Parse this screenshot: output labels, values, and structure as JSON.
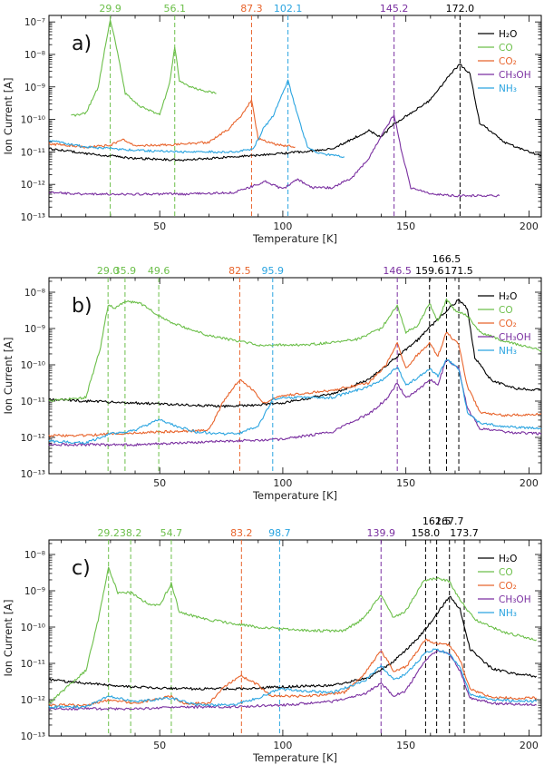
{
  "colors": {
    "H2O": "#000000",
    "CO": "#6cbf4a",
    "CO2": "#e8642c",
    "CH3OH": "#7a2fa0",
    "NH3": "#2aa4e0"
  },
  "chart_data": [
    {
      "type": "line",
      "panel_label": "a)",
      "xlabel": "Temperature [K]",
      "ylabel": "Ion Current [A]",
      "xlim": [
        5,
        205
      ],
      "ylim_log10": [
        -13,
        -6.8
      ],
      "x_ticks": [
        "50",
        "100",
        "150",
        "200"
      ],
      "y_ticks": [
        "10⁻¹³",
        "10⁻¹²",
        "10⁻¹¹",
        "10⁻¹⁰",
        "10⁻⁹",
        "10⁻⁸",
        "10⁻⁷"
      ],
      "legend": [
        "H₂O",
        "CO",
        "CO₂",
        "CH₃OH",
        "NH₃"
      ],
      "peak_markers": [
        {
          "T": 29.9,
          "label": "29.9",
          "species": "CO",
          "row": 0
        },
        {
          "T": 56.1,
          "label": "56.1",
          "species": "CO",
          "row": 0
        },
        {
          "T": 87.3,
          "label": "87.3",
          "species": "CO2",
          "row": 0
        },
        {
          "T": 102.1,
          "label": "102.1",
          "species": "NH3",
          "row": 0
        },
        {
          "T": 145.2,
          "label": "145.2",
          "species": "CH3OH",
          "row": 0
        },
        {
          "T": 172.0,
          "label": "172.0",
          "species": "H2O",
          "row": 0
        }
      ],
      "series": [
        {
          "name": "H2O",
          "x": [
            5,
            20,
            40,
            60,
            80,
            100,
            120,
            135,
            140,
            145,
            150,
            160,
            168,
            172,
            176,
            180,
            190,
            200,
            205
          ],
          "log10_current": [
            -10.9,
            -11.05,
            -11.2,
            -11.25,
            -11.15,
            -11.05,
            -10.9,
            -10.35,
            -10.55,
            -10.15,
            -9.9,
            -9.4,
            -8.6,
            -8.3,
            -8.6,
            -10.1,
            -10.7,
            -11.0,
            -11.1
          ]
        },
        {
          "name": "CO",
          "x": [
            14,
            20,
            25,
            28,
            29.9,
            32,
            36,
            42,
            50,
            54,
            56.1,
            58,
            62,
            70,
            73
          ],
          "log10_current": [
            -9.9,
            -9.8,
            -9.0,
            -7.7,
            -6.95,
            -7.6,
            -9.2,
            -9.6,
            -9.85,
            -8.9,
            -7.75,
            -8.8,
            -9.0,
            -9.15,
            -9.2
          ]
        },
        {
          "name": "CO2",
          "x": [
            5,
            20,
            30,
            35,
            40,
            50,
            60,
            70,
            78,
            84,
            87.3,
            90,
            96,
            100,
            105
          ],
          "log10_current": [
            -10.75,
            -10.85,
            -10.8,
            -10.6,
            -10.8,
            -10.8,
            -10.75,
            -10.7,
            -10.3,
            -9.8,
            -9.4,
            -10.6,
            -10.75,
            -10.8,
            -10.85
          ]
        },
        {
          "name": "CH3OH",
          "x": [
            5,
            20,
            40,
            60,
            80,
            88,
            93,
            100,
            106,
            112,
            120,
            128,
            135,
            140,
            145.2,
            148,
            152,
            160,
            170,
            188
          ],
          "log10_current": [
            -12.25,
            -12.3,
            -12.3,
            -12.3,
            -12.25,
            -12.05,
            -11.9,
            -12.15,
            -11.85,
            -12.1,
            -12.1,
            -11.8,
            -11.2,
            -10.5,
            -9.85,
            -10.9,
            -12.1,
            -12.3,
            -12.35,
            -12.35
          ]
        },
        {
          "name": "NH3",
          "x": [
            5,
            20,
            40,
            60,
            80,
            88,
            92,
            96,
            102.1,
            105,
            110,
            115,
            120,
            125
          ],
          "log10_current": [
            -10.65,
            -10.85,
            -10.95,
            -11.0,
            -11.0,
            -10.9,
            -10.3,
            -9.9,
            -8.8,
            -9.6,
            -10.85,
            -11.05,
            -11.1,
            -11.15
          ]
        }
      ]
    },
    {
      "type": "line",
      "panel_label": "b)",
      "xlabel": "Temperature [K]",
      "ylabel": "Ion Current [A]",
      "xlim": [
        5,
        205
      ],
      "ylim_log10": [
        -13,
        -7.6
      ],
      "x_ticks": [
        "50",
        "100",
        "150",
        "200"
      ],
      "y_ticks": [
        "10⁻¹³",
        "10⁻¹²",
        "10⁻¹¹",
        "10⁻¹⁰",
        "10⁻⁹",
        "10⁻⁸"
      ],
      "legend": [
        "H₂O",
        "CO",
        "CO₂",
        "CH₃OH",
        "NH₃"
      ],
      "peak_markers": [
        {
          "T": 29.0,
          "label": "29.0",
          "species": "CO",
          "row": 0
        },
        {
          "T": 35.9,
          "label": "35.9",
          "species": "CO",
          "row": 0
        },
        {
          "T": 49.6,
          "label": "49.6",
          "species": "CO",
          "row": 0
        },
        {
          "T": 82.5,
          "label": "82.5",
          "species": "CO2",
          "row": 0
        },
        {
          "T": 95.9,
          "label": "95.9",
          "species": "NH3",
          "row": 0
        },
        {
          "T": 146.5,
          "label": "146.5",
          "species": "CH3OH",
          "row": 0
        },
        {
          "T": 159.6,
          "label": "159.6",
          "species": "H2O",
          "row": 0
        },
        {
          "T": 166.5,
          "label": "166.5",
          "species": "H2O",
          "row": 1
        },
        {
          "T": 171.5,
          "label": "171.5",
          "species": "H2O",
          "row": 0
        }
      ],
      "series": [
        {
          "name": "H2O",
          "x": [
            5,
            20,
            40,
            60,
            80,
            100,
            120,
            135,
            145,
            155,
            165,
            171.5,
            175,
            178,
            185,
            195,
            205
          ],
          "log10_current": [
            -10.95,
            -11.0,
            -11.05,
            -11.1,
            -11.15,
            -11.05,
            -10.8,
            -10.4,
            -9.85,
            -9.3,
            -8.6,
            -8.2,
            -8.45,
            -9.8,
            -10.45,
            -10.65,
            -10.7
          ]
        },
        {
          "name": "CO",
          "x": [
            5,
            20,
            26,
            29.0,
            32,
            35.9,
            42,
            49.6,
            55,
            70,
            90,
            110,
            130,
            140,
            146.5,
            150,
            155,
            159.6,
            163,
            166.5,
            170,
            175,
            180,
            190,
            205
          ],
          "log10_current": [
            -11.0,
            -10.9,
            -9.5,
            -8.35,
            -8.45,
            -8.25,
            -8.3,
            -8.65,
            -8.85,
            -9.2,
            -9.45,
            -9.45,
            -9.3,
            -9.0,
            -8.35,
            -9.1,
            -8.9,
            -8.3,
            -8.8,
            -8.2,
            -8.5,
            -8.65,
            -9.1,
            -9.35,
            -9.6
          ]
        },
        {
          "name": "CO2",
          "x": [
            5,
            20,
            30,
            50,
            70,
            76,
            82.5,
            88,
            92,
            100,
            120,
            135,
            142,
            146.5,
            150,
            155,
            159.6,
            163,
            166.5,
            171.5,
            175,
            180,
            190,
            205
          ],
          "log10_current": [
            -11.95,
            -11.95,
            -11.9,
            -11.85,
            -11.8,
            -11.0,
            -10.4,
            -10.7,
            -11.05,
            -10.85,
            -10.7,
            -10.5,
            -10.0,
            -9.4,
            -10.1,
            -9.7,
            -9.4,
            -9.75,
            -9.1,
            -9.45,
            -10.6,
            -11.3,
            -11.4,
            -11.35
          ]
        },
        {
          "name": "CH3OH",
          "x": [
            5,
            20,
            40,
            60,
            80,
            100,
            120,
            135,
            142,
            146.5,
            150,
            155,
            159.6,
            163,
            166.5,
            171.5,
            175,
            180,
            190,
            205
          ],
          "log10_current": [
            -12.2,
            -12.2,
            -12.2,
            -12.15,
            -12.1,
            -12.05,
            -11.85,
            -11.35,
            -10.95,
            -10.5,
            -10.9,
            -10.7,
            -10.4,
            -10.55,
            -9.85,
            -10.1,
            -11.2,
            -11.75,
            -11.85,
            -11.9
          ]
        },
        {
          "name": "NH3",
          "x": [
            5,
            20,
            30,
            40,
            50,
            55,
            65,
            75,
            82,
            90,
            95.9,
            100,
            120,
            135,
            142,
            146.5,
            150,
            155,
            159.6,
            163,
            166.5,
            171.5,
            175,
            180,
            190,
            205
          ],
          "log10_current": [
            -12.1,
            -12.15,
            -11.9,
            -11.8,
            -11.5,
            -11.65,
            -11.85,
            -11.9,
            -11.9,
            -11.7,
            -10.95,
            -10.9,
            -10.9,
            -10.6,
            -10.35,
            -10.05,
            -10.55,
            -10.35,
            -10.1,
            -10.3,
            -9.85,
            -10.1,
            -11.3,
            -11.6,
            -11.7,
            -11.75
          ]
        }
      ]
    },
    {
      "type": "line",
      "panel_label": "c)",
      "xlabel": "Temperature [K]",
      "ylabel": "Ion Current [A]",
      "xlim": [
        5,
        205
      ],
      "ylim_log10": [
        -13,
        -7.6
      ],
      "x_ticks": [
        "50",
        "100",
        "150",
        "200"
      ],
      "y_ticks": [
        "10⁻¹³",
        "10⁻¹²",
        "10⁻¹¹",
        "10⁻¹⁰",
        "10⁻⁹",
        "10⁻⁸"
      ],
      "legend": [
        "H₂O",
        "CO",
        "CO₂",
        "CH₃OH",
        "NH₃"
      ],
      "peak_markers": [
        {
          "T": 29.2,
          "label": "29.2",
          "species": "CO",
          "row": 0
        },
        {
          "T": 38.2,
          "label": "38.2",
          "species": "CO",
          "row": 0
        },
        {
          "T": 54.7,
          "label": "54.7",
          "species": "CO",
          "row": 0
        },
        {
          "T": 83.2,
          "label": "83.2",
          "species": "CO2",
          "row": 0
        },
        {
          "T": 98.7,
          "label": "98.7",
          "species": "NH3",
          "row": 0
        },
        {
          "T": 139.9,
          "label": "139.9",
          "species": "CH3OH",
          "row": 0
        },
        {
          "T": 158.0,
          "label": "158.0",
          "species": "H2O",
          "row": 0
        },
        {
          "T": 162.5,
          "label": "162.5",
          "species": "H2O",
          "row": 1
        },
        {
          "T": 167.7,
          "label": "167.7",
          "species": "H2O",
          "row": 1
        },
        {
          "T": 173.7,
          "label": "173.7",
          "species": "H2O",
          "row": 0
        }
      ],
      "series": [
        {
          "name": "H2O",
          "x": [
            5,
            20,
            40,
            60,
            80,
            100,
            120,
            135,
            145,
            155,
            162,
            167.7,
            172,
            176,
            185,
            195,
            203
          ],
          "log10_current": [
            -11.45,
            -11.55,
            -11.65,
            -11.7,
            -11.7,
            -11.65,
            -11.6,
            -11.4,
            -10.95,
            -10.3,
            -9.7,
            -9.15,
            -9.5,
            -10.6,
            -11.15,
            -11.3,
            -11.35
          ]
        },
        {
          "name": "CO",
          "x": [
            5,
            20,
            25,
            29.2,
            33,
            38.2,
            45,
            50,
            54.7,
            58,
            70,
            90,
            110,
            125,
            133,
            139.9,
            145,
            150,
            157,
            162.5,
            167.7,
            172,
            178,
            190,
            203
          ],
          "log10_current": [
            -12.1,
            -11.2,
            -9.8,
            -8.35,
            -9.05,
            -9.05,
            -9.35,
            -9.4,
            -8.8,
            -9.6,
            -9.8,
            -10.0,
            -10.1,
            -10.1,
            -9.75,
            -9.1,
            -9.75,
            -9.55,
            -8.75,
            -8.65,
            -8.75,
            -9.25,
            -9.8,
            -10.15,
            -10.35
          ]
        },
        {
          "name": "CO2",
          "x": [
            5,
            20,
            30,
            40,
            54.7,
            60,
            70,
            77,
            83.2,
            90,
            95,
            110,
            125,
            133,
            139.9,
            145,
            150,
            158,
            162.5,
            167.7,
            172,
            176,
            185,
            203
          ],
          "log10_current": [
            -12.15,
            -12.15,
            -12.0,
            -12.1,
            -11.9,
            -12.1,
            -12.1,
            -11.6,
            -11.35,
            -11.6,
            -11.9,
            -11.9,
            -11.8,
            -11.3,
            -10.65,
            -11.2,
            -11.1,
            -10.35,
            -10.45,
            -10.5,
            -10.9,
            -11.7,
            -11.95,
            -11.95
          ]
        },
        {
          "name": "CH3OH",
          "x": [
            5,
            20,
            40,
            60,
            80,
            100,
            120,
            133,
            139.9,
            145,
            150,
            158,
            162.5,
            167.7,
            172,
            176,
            185,
            203
          ],
          "log10_current": [
            -12.25,
            -12.25,
            -12.25,
            -12.2,
            -12.2,
            -12.15,
            -12.05,
            -11.85,
            -11.55,
            -11.9,
            -11.75,
            -10.9,
            -10.65,
            -10.75,
            -11.2,
            -11.95,
            -12.1,
            -12.15
          ]
        },
        {
          "name": "NH3",
          "x": [
            5,
            20,
            29.2,
            40,
            54.7,
            65,
            80,
            90,
            98.7,
            105,
            120,
            133,
            139.9,
            145,
            150,
            158,
            162.5,
            167.7,
            172,
            176,
            185,
            203
          ],
          "log10_current": [
            -12.2,
            -12.2,
            -11.9,
            -12.05,
            -11.95,
            -12.15,
            -12.15,
            -11.95,
            -11.7,
            -11.75,
            -11.8,
            -11.5,
            -11.05,
            -11.45,
            -11.3,
            -10.7,
            -10.6,
            -10.75,
            -11.1,
            -11.85,
            -12.0,
            -12.05
          ]
        }
      ]
    }
  ]
}
